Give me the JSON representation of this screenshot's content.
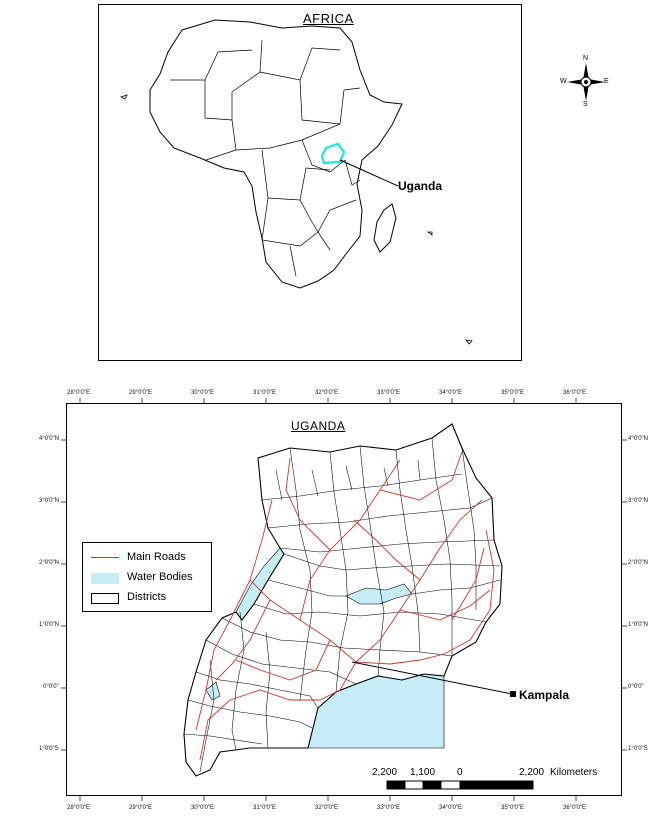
{
  "africa_map": {
    "title": "AFRICA",
    "highlight_label": "Uganda",
    "highlight_color": "#33e0e6"
  },
  "compass": {
    "n": "N",
    "s": "S",
    "e": "E",
    "w": "W"
  },
  "uganda_map": {
    "title": "UGANDA",
    "city_label": "Kampala",
    "lon_ticks": [
      "28°0'0\"E",
      "29°0'0\"E",
      "30°0'0\"E",
      "31°0'0\"E",
      "32°0'0\"E",
      "33°0'0\"E",
      "34°0'0\"E",
      "35°0'0\"E",
      "36°0'0\"E"
    ],
    "lat_ticks": [
      "4°0'0\"N",
      "3°0'0\"N",
      "2°0'0\"N",
      "1°0'0\"N",
      "0°0'0\"",
      "1°0'0\"S"
    ]
  },
  "legend": {
    "items": [
      {
        "label": "Main Roads",
        "color": "#c0392b"
      },
      {
        "label": "Water Bodies",
        "color": "#c6ecf6"
      },
      {
        "label": "Districts",
        "color": "#ffffff"
      }
    ]
  },
  "scale_bar": {
    "labels": [
      "2,200",
      "1,100",
      "0",
      "2,200"
    ],
    "unit": "Kilometers"
  }
}
